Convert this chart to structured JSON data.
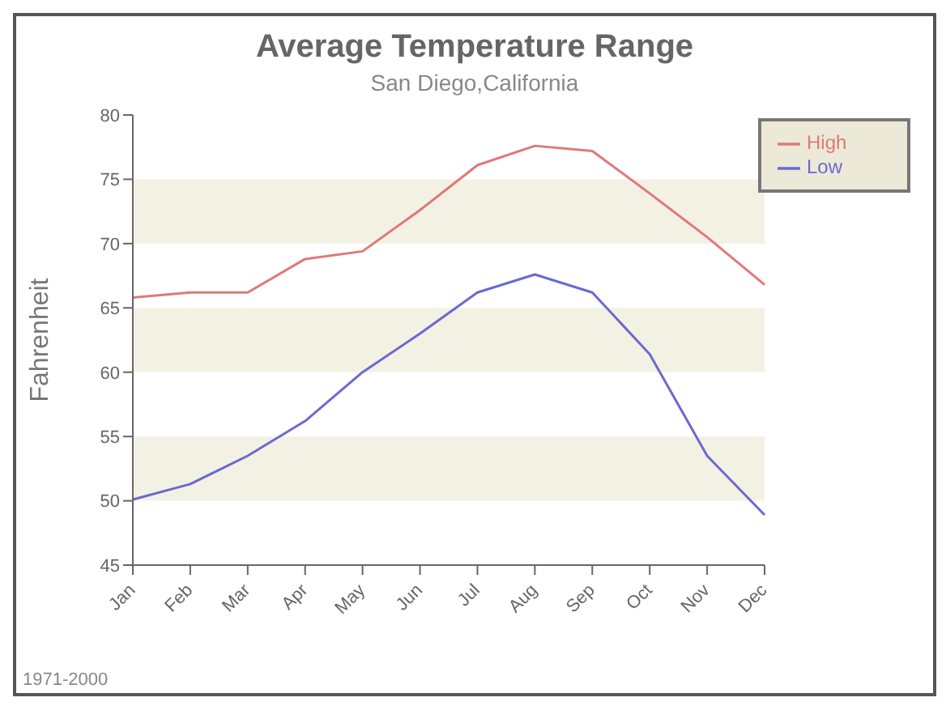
{
  "chart_data": {
    "type": "line",
    "title": "Average Temperature Range",
    "subtitle": "San Diego,California",
    "ylabel": "Fahrenheit",
    "categories": [
      "Jan",
      "Feb",
      "Mar",
      "Apr",
      "May",
      "Jun",
      "Jul",
      "Aug",
      "Sep",
      "Oct",
      "Nov",
      "Dec"
    ],
    "series": [
      {
        "name": "High",
        "color": "#e07878",
        "values": [
          65.8,
          66.2,
          66.2,
          68.8,
          69.4,
          72.6,
          76.1,
          77.6,
          77.2,
          73.9,
          70.5,
          66.8
        ]
      },
      {
        "name": "Low",
        "color": "#6a6ad0",
        "values": [
          50.1,
          51.3,
          53.5,
          56.2,
          60,
          63,
          66.2,
          67.6,
          66.2,
          61.4,
          53.5,
          48.9
        ]
      }
    ],
    "ylim": [
      45,
      80
    ],
    "yticks": [
      45,
      50,
      55,
      60,
      65,
      70,
      75,
      80
    ],
    "bands": [
      {
        "axis": "y",
        "from": 70,
        "to": 75,
        "color": "#f3f1e4"
      },
      {
        "axis": "y",
        "from": 60,
        "to": 65,
        "color": "#f3f1e4"
      },
      {
        "axis": "y",
        "from": 50,
        "to": 55,
        "color": "#f3f1e4"
      }
    ],
    "legend": "top right",
    "marker": "none",
    "line_style": "solid",
    "grid": false,
    "annotations": [
      "1971-2000"
    ]
  }
}
